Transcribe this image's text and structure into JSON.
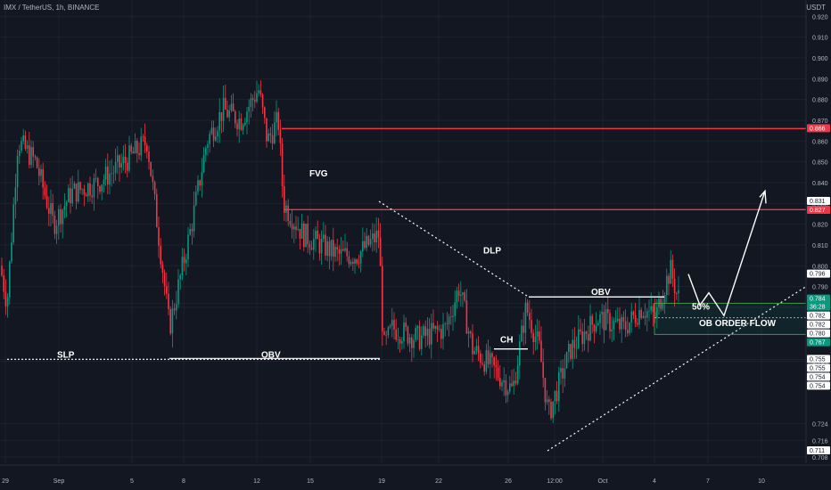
{
  "header": {
    "symbol": "IMX / TetherUS, 1h, BINANCE",
    "currency": "USDT"
  },
  "chart_data": {
    "type": "candlestick",
    "ylim": [
      0.705,
      0.927
    ],
    "y_ticks": [
      "0.920",
      "0.910",
      "0.900",
      "0.890",
      "0.880",
      "0.870",
      "0.860",
      "0.850",
      "0.840",
      "0.830",
      "0.820",
      "0.810",
      "0.800",
      "0.790",
      "0.782",
      "0.780",
      "0.755",
      "0.754",
      "0.724",
      "0.716",
      "0.708"
    ],
    "x_ticks": [
      "29",
      "Sep",
      "5",
      "8",
      "12",
      "15",
      "19",
      "22",
      "26",
      "12:00",
      "Oct",
      "4",
      "7",
      "10"
    ],
    "price_badges": [
      {
        "label": "0.866",
        "color": "#f23645"
      },
      {
        "label": "0.831",
        "color": "#ffffff"
      },
      {
        "label": "0.827",
        "color": "#f23645"
      },
      {
        "label": "0.796",
        "color": "#ffffff"
      },
      {
        "label": "0.784",
        "sub": "36:28",
        "color": "#089981"
      },
      {
        "label": "0.782",
        "color": "#ffffff"
      },
      {
        "label": "0.782",
        "color": "#ffffff"
      },
      {
        "label": "0.780",
        "color": "#ffffff"
      },
      {
        "label": "0.767",
        "color": "#089981"
      },
      {
        "label": "0.755",
        "color": "#ffffff"
      },
      {
        "label": "0.755",
        "color": "#ffffff"
      },
      {
        "label": "0.754",
        "color": "#ffffff"
      },
      {
        "label": "0.754",
        "color": "#ffffff"
      },
      {
        "label": "0.711",
        "color": "#ffffff"
      }
    ],
    "annotations": [
      "FVG",
      "DLP",
      "OBV",
      "CH",
      "SLP",
      "OBV",
      "50%",
      "OB ORDER FLOW"
    ],
    "colors": {
      "up": "#089981",
      "down": "#f23645",
      "bg": "#131722",
      "grid": "#1e222d"
    }
  }
}
